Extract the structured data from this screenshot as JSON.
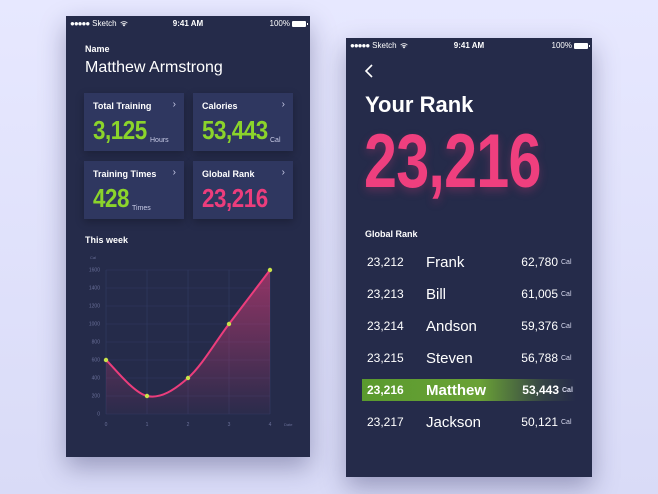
{
  "status": {
    "carrier": "Sketch",
    "time": "9:41 AM",
    "battery": "100%"
  },
  "profile": {
    "name_label": "Name",
    "name": "Matthew Armstrong"
  },
  "stats": [
    {
      "title": "Total Training",
      "value": "3,125",
      "unit": "Hours",
      "color": "#8bd42b"
    },
    {
      "title": "Calories",
      "value": "53,443",
      "unit": "Cal",
      "color": "#8bd42b"
    },
    {
      "title": "Training Times",
      "value": "428",
      "unit": "Times",
      "color": "#8bd42b"
    },
    {
      "title": "Global Rank",
      "value": "23,216",
      "unit": "",
      "color": "#ec3d7c"
    }
  ],
  "week_label": "This week",
  "chart_data": {
    "type": "line",
    "x": [
      0,
      1,
      2,
      3,
      4
    ],
    "y": [
      600,
      200,
      400,
      1000,
      1600
    ],
    "xlabel": "Date",
    "ylabel": "Cal",
    "ylim": [
      0,
      1600
    ],
    "yticks": [
      0,
      200,
      400,
      600,
      800,
      1000,
      1200,
      1400,
      1600
    ],
    "xticks": [
      0,
      1,
      2,
      3,
      4
    ],
    "grid": true,
    "line_color": "#ec3d7c",
    "point_color": "#c9e24a"
  },
  "rank": {
    "title": "Your Rank",
    "value": "23,216",
    "list_label": "Global Rank",
    "unit": "Cal",
    "rows": [
      {
        "rank": "23,212",
        "name": "Frank",
        "cal": "62,780",
        "highlight": false
      },
      {
        "rank": "23,213",
        "name": "Bill",
        "cal": "61,005",
        "highlight": false
      },
      {
        "rank": "23,214",
        "name": "Andson",
        "cal": "59,376",
        "highlight": false
      },
      {
        "rank": "23,215",
        "name": "Steven",
        "cal": "56,788",
        "highlight": false
      },
      {
        "rank": "23,216",
        "name": "Matthew",
        "cal": "53,443",
        "highlight": true
      },
      {
        "rank": "23,217",
        "name": "Jackson",
        "cal": "50,121",
        "highlight": false
      }
    ]
  }
}
